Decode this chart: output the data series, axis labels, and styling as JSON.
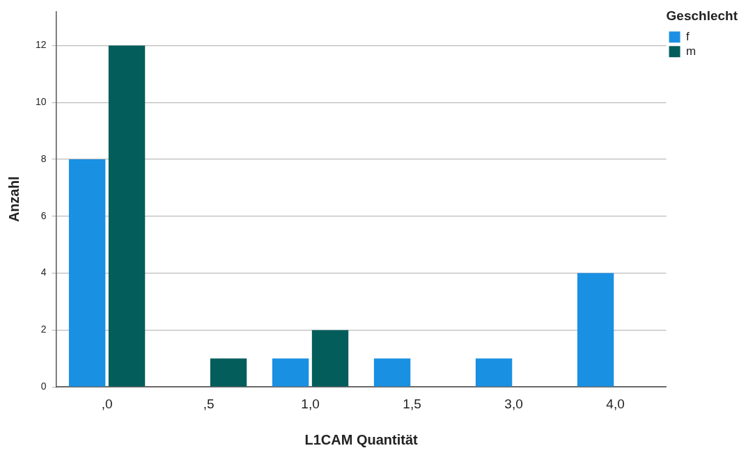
{
  "chart_data": {
    "type": "bar",
    "xlabel": "L1CAM Quantität",
    "ylabel": "Anzahl",
    "legend_title": "Geschlecht",
    "categories": [
      ",0",
      ",5",
      "1,0",
      "1,5",
      "3,0",
      "4,0"
    ],
    "series": [
      {
        "name": "f",
        "color": "#1a90e3",
        "values": [
          8,
          0,
          1,
          1,
          1,
          4
        ]
      },
      {
        "name": "m",
        "color": "#035d5b",
        "values": [
          12,
          1,
          2,
          0,
          0,
          0
        ]
      }
    ],
    "ylim": [
      0,
      13.2
    ],
    "yticks": [
      0,
      2,
      4,
      6,
      8,
      10,
      12
    ],
    "grid": "y",
    "legend": "top right"
  }
}
